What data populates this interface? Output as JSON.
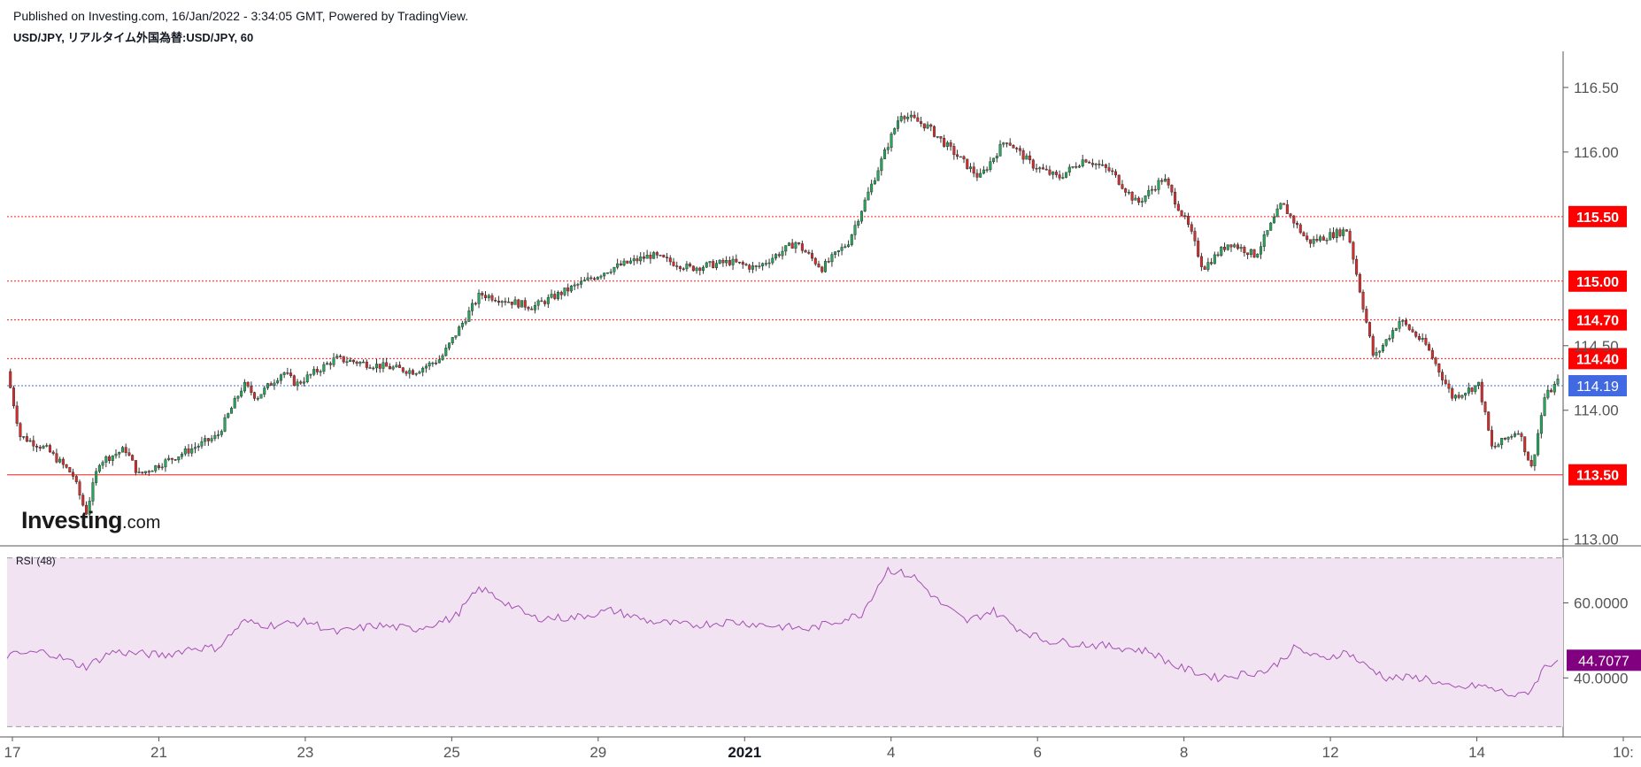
{
  "header": {
    "published": "Published on Investing.com, 16/Jan/2022 - 3:34:05 GMT, Powered by TradingView.",
    "symbol": "USD/JPY, リアルタイム外国為替:USD/JPY, 60"
  },
  "logo": {
    "name": "Investing",
    "suffix": ".com"
  },
  "rsi_panel": {
    "label": "RSI (48)"
  },
  "colors": {
    "up": "#26a65b",
    "down": "#d32f2f",
    "wick": "#333333",
    "level_line": "#ff1a1a",
    "last_price": "#4169e1",
    "rsi_line": "#a34fb3",
    "rsi_band": "#f1e3f1",
    "rsi_value_bg": "#800080"
  },
  "chart_data": [
    {
      "type": "line",
      "subtype": "candlestick",
      "x_tick_labels": [
        "17",
        "21",
        "23",
        "25",
        "29",
        "2021",
        "4",
        "6",
        "8",
        "12",
        "14",
        "10:"
      ],
      "x_tick_bold": "2021",
      "y_tick_labels": [
        "116.50",
        "116.00",
        "114.50",
        "114.00",
        "113.00"
      ],
      "ylim": [
        112.95,
        116.78
      ],
      "price_path": [
        [
          0,
          114.3
        ],
        [
          1,
          113.8
        ],
        [
          3,
          113.7
        ],
        [
          5,
          113.5
        ],
        [
          6,
          113.2
        ],
        [
          7,
          113.6
        ],
        [
          9,
          113.7
        ],
        [
          10,
          113.5
        ],
        [
          12,
          113.6
        ],
        [
          14,
          113.7
        ],
        [
          16,
          113.8
        ],
        [
          18,
          114.2
        ],
        [
          19,
          114.1
        ],
        [
          21,
          114.3
        ],
        [
          22,
          114.2
        ],
        [
          25,
          114.4
        ],
        [
          28,
          114.35
        ],
        [
          31,
          114.3
        ],
        [
          33,
          114.4
        ],
        [
          36,
          114.9
        ],
        [
          38,
          114.85
        ],
        [
          40,
          114.8
        ],
        [
          43,
          114.95
        ],
        [
          46,
          115.1
        ],
        [
          49,
          115.2
        ],
        [
          52,
          115.1
        ],
        [
          55,
          115.15
        ],
        [
          57,
          115.1
        ],
        [
          60,
          115.3
        ],
        [
          62,
          115.1
        ],
        [
          64,
          115.3
        ],
        [
          66,
          115.8
        ],
        [
          68,
          116.3
        ],
        [
          70,
          116.2
        ],
        [
          72,
          116.0
        ],
        [
          74,
          115.8
        ],
        [
          76,
          116.1
        ],
        [
          78,
          115.9
        ],
        [
          80,
          115.8
        ],
        [
          82,
          115.95
        ],
        [
          84,
          115.85
        ],
        [
          86,
          115.6
        ],
        [
          88,
          115.8
        ],
        [
          90,
          115.4
        ],
        [
          91,
          115.1
        ],
        [
          93,
          115.3
        ],
        [
          95,
          115.2
        ],
        [
          97,
          115.6
        ],
        [
          99,
          115.3
        ],
        [
          102,
          115.4
        ],
        [
          103,
          114.9
        ],
        [
          104,
          114.4
        ],
        [
          106,
          114.7
        ],
        [
          108,
          114.5
        ],
        [
          110,
          114.1
        ],
        [
          112,
          114.2
        ],
        [
          113,
          113.7
        ],
        [
          115,
          113.85
        ],
        [
          116,
          113.55
        ],
        [
          117,
          114.1
        ],
        [
          118,
          114.22
        ]
      ],
      "levels": [
        115.5,
        115.0,
        114.7,
        114.4,
        113.5
      ],
      "level_labels": [
        "115.50",
        "115.00",
        "114.70",
        "114.40",
        "113.50"
      ],
      "last_price": 114.19,
      "last_price_label": "114.19"
    },
    {
      "type": "line",
      "name": "RSI (48)",
      "y_tick_labels": [
        "60.0000",
        "40.0000"
      ],
      "ylim": [
        24.5,
        74.5
      ],
      "band": [
        27,
        72
      ],
      "rsi_path": [
        [
          0,
          46
        ],
        [
          3,
          47
        ],
        [
          5,
          44
        ],
        [
          6,
          43
        ],
        [
          8,
          47
        ],
        [
          12,
          46
        ],
        [
          14,
          48
        ],
        [
          16,
          48
        ],
        [
          18,
          55
        ],
        [
          20,
          54
        ],
        [
          23,
          55
        ],
        [
          25,
          52
        ],
        [
          28,
          54
        ],
        [
          31,
          53
        ],
        [
          34,
          56
        ],
        [
          36,
          64
        ],
        [
          38,
          60
        ],
        [
          40,
          56
        ],
        [
          43,
          56
        ],
        [
          46,
          58
        ],
        [
          49,
          55
        ],
        [
          52,
          54
        ],
        [
          55,
          55
        ],
        [
          58,
          54
        ],
        [
          61,
          53
        ],
        [
          63,
          55
        ],
        [
          65,
          57
        ],
        [
          66,
          63
        ],
        [
          67,
          69
        ],
        [
          69,
          67
        ],
        [
          71,
          60
        ],
        [
          73,
          55
        ],
        [
          75,
          58
        ],
        [
          77,
          53
        ],
        [
          79,
          50
        ],
        [
          82,
          49
        ],
        [
          85,
          48
        ],
        [
          87,
          47
        ],
        [
          89,
          43
        ],
        [
          92,
          40
        ],
        [
          94,
          41
        ],
        [
          96,
          42
        ],
        [
          98,
          48
        ],
        [
          100,
          45
        ],
        [
          102,
          47
        ],
        [
          103,
          44
        ],
        [
          105,
          40
        ],
        [
          108,
          40
        ],
        [
          110,
          37
        ],
        [
          112,
          38
        ],
        [
          114,
          36
        ],
        [
          115,
          35
        ],
        [
          116,
          37
        ],
        [
          117,
          43
        ],
        [
          118,
          44.71
        ]
      ],
      "last_value": 44.7077,
      "last_value_label": "44.7077"
    }
  ]
}
